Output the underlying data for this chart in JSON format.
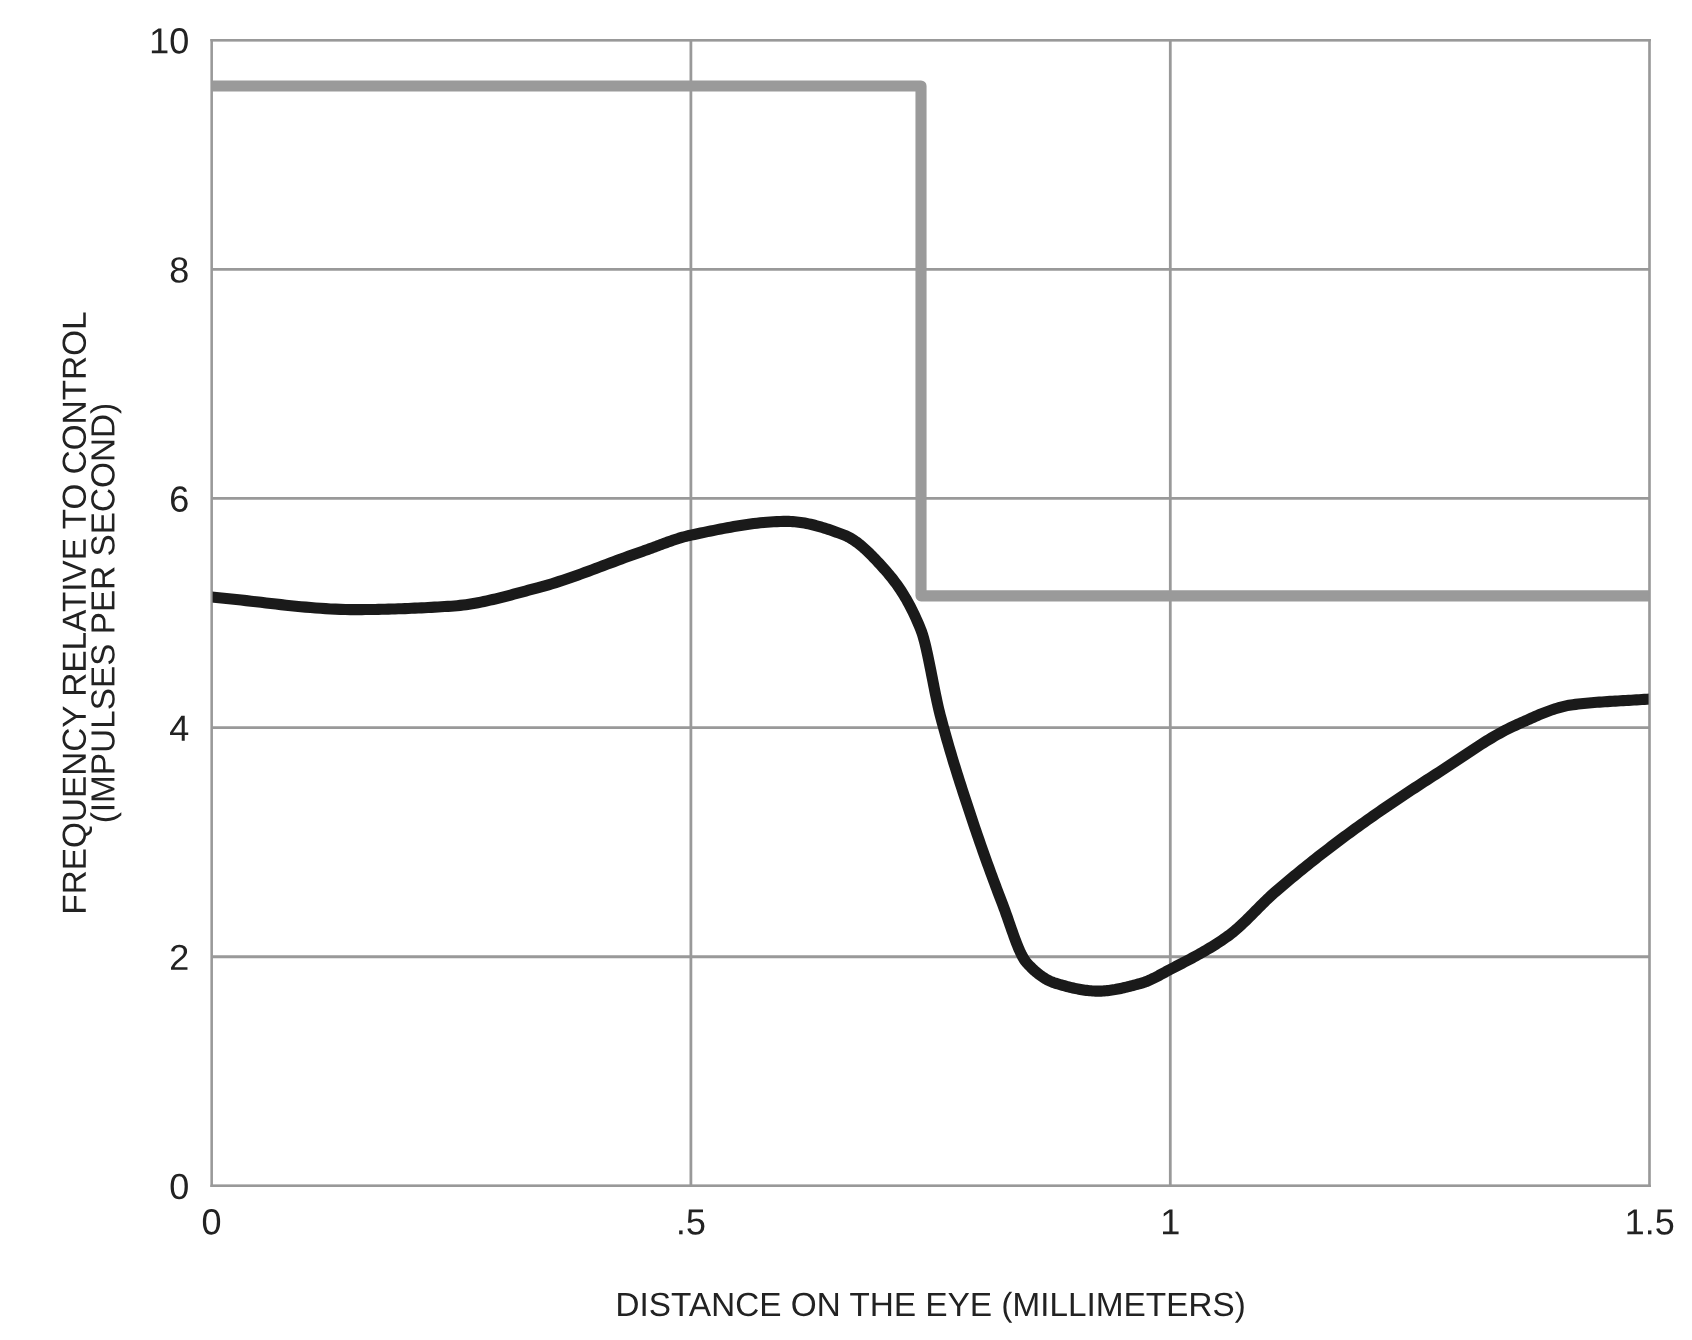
{
  "chart_data": {
    "type": "line",
    "xlabel": "DISTANCE ON THE EYE (MILLIMETERS)",
    "ylabel": "FREQUENCY RELATIVE TO CONTROL\n(IMPULSES PER SECOND)",
    "xlim": [
      0,
      1.5
    ],
    "ylim": [
      0,
      10
    ],
    "xticks": [
      0,
      {
        "value": 0.5,
        "label": ".5"
      },
      1,
      1.5
    ],
    "yticks": [
      0,
      2,
      4,
      6,
      8,
      10
    ],
    "grid": true,
    "marker": "none",
    "line_style": "solid",
    "series": [
      {
        "type": "step",
        "color": "#9a9a9a",
        "x": [
          0,
          0.74,
          1.5
        ],
        "values": [
          9.6,
          5.15,
          5.15
        ]
      },
      {
        "color": "#1a1a1a",
        "x": [
          0,
          0.15,
          0.25,
          0.34,
          0.45,
          0.5,
          0.6,
          0.66,
          0.7,
          0.74,
          0.76,
          0.79,
          0.825,
          0.85,
          0.88,
          0.925,
          0.97,
          1.0,
          1.06,
          1.11,
          1.19,
          1.28,
          1.36,
          1.42,
          1.5
        ],
        "values": [
          5.14,
          5.03,
          5.06,
          5.22,
          5.54,
          5.68,
          5.8,
          5.68,
          5.4,
          4.85,
          4.11,
          3.28,
          2.46,
          1.95,
          1.77,
          1.7,
          1.77,
          1.89,
          2.18,
          2.57,
          3.1,
          3.61,
          4.02,
          4.2,
          4.25
        ]
      }
    ]
  }
}
